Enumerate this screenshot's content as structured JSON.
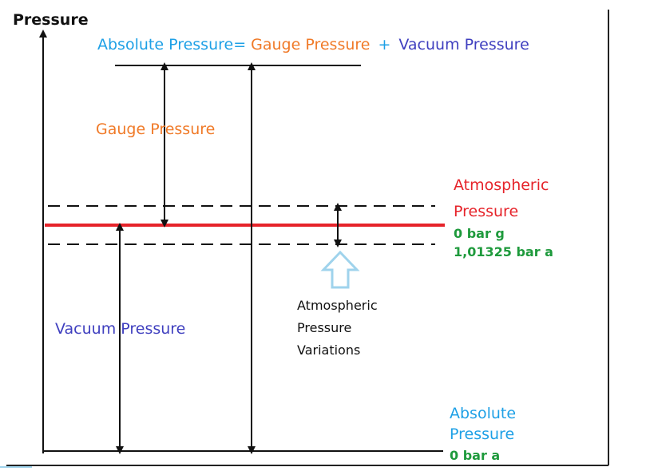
{
  "axis_label": "Pressure",
  "equation": {
    "absolute": "Absolute Pressure",
    "equals": "=",
    "gauge": "Gauge Pressure",
    "plus": "+",
    "vacuum": "Vacuum Pressure"
  },
  "labels": {
    "gauge": "Gauge Pressure",
    "vacuum": "Vacuum Pressure",
    "atmospheric_line1": "Atmospheric",
    "atmospheric_line2": "Pressure",
    "atm_gauge_value": "0 bar g",
    "atm_abs_value": "1,01325 bar a",
    "variations_line1": "Atmospheric",
    "variations_line2": "Pressure",
    "variations_line3": "Variations",
    "absolute_line1": "Absolute",
    "absolute_line2": "Pressure",
    "absolute_value": "0 bar a"
  },
  "colors": {
    "absolute": "#1ea0e6",
    "gauge": "#f07a28",
    "vacuum": "#3f3fbf",
    "atmospheric": "#e6232a",
    "value_green": "#1e9a3c",
    "variations_arrow": "#9fd3ec",
    "line": "#111111"
  }
}
